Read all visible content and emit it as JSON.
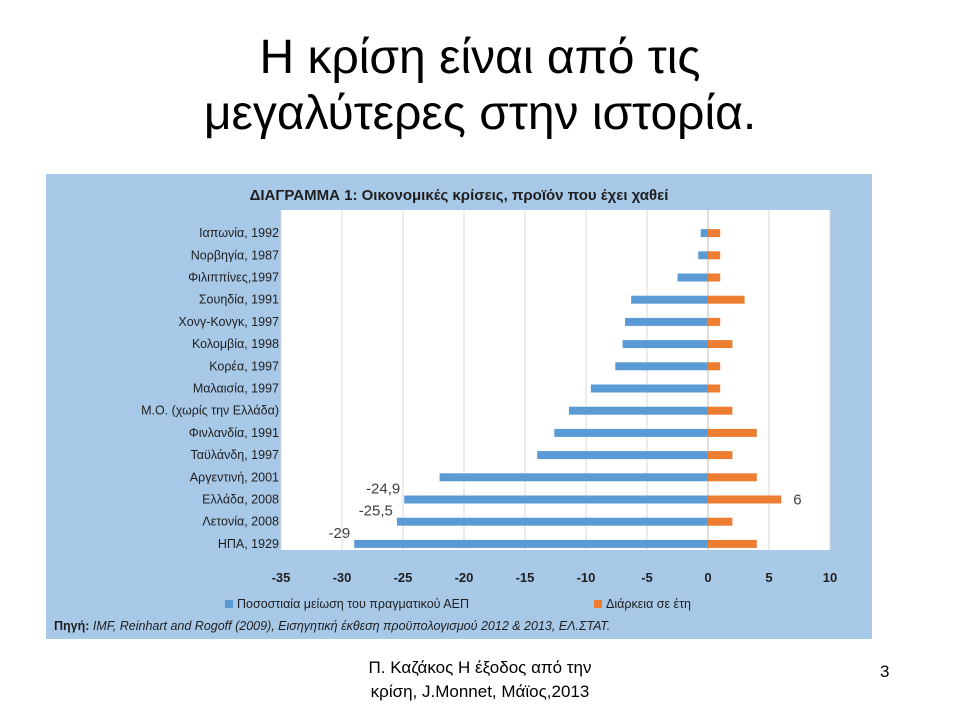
{
  "slide": {
    "title_line1": "Η κρίση είναι από τις",
    "title_line2": "μεγαλύτερες στην ιστορία.",
    "footer_line1": "Π. Καζάκος Η έξοδος από την",
    "footer_line2": "κρίση, J.Monnet, Μάϊος,2013",
    "page_number": "3"
  },
  "chart_data": {
    "type": "bar",
    "orientation": "horizontal",
    "title": "ΔΙΑΓΡΑΜΜΑ 1: Οικονομικές κρίσεις,  προϊόν που  έχει χαθεί",
    "categories": [
      "Ιαπωνία, 1992",
      "Νορβηγία, 1987",
      "Φιλιππίνες,1997",
      "Σουηδία, 1991",
      "Χονγ-Κονγκ, 1997",
      "Κολομβία, 1998",
      "Κορέα, 1997",
      "Μαλαισία, 1997",
      "Μ.Ο. (χωρίς την Ελλάδα)",
      "Φινλανδία, 1991",
      "Ταϋλάνδη, 1997",
      "Αργεντινή, 2001",
      "Ελλάδα, 2008",
      "Λετονία, 2008",
      "ΗΠΑ, 1929"
    ],
    "series": [
      {
        "name": "Ποσοστιαία μείωση του πραγματικού ΑΕΠ",
        "color": "#5b9bd5",
        "values": [
          -0.6,
          -0.8,
          -2.5,
          -6.3,
          -6.8,
          -7.0,
          -7.6,
          -9.6,
          -11.4,
          -12.6,
          -14.0,
          -22.0,
          -24.9,
          -25.5,
          -29.0
        ]
      },
      {
        "name": "Διάρκεια σε έτη",
        "color": "#ed7d31",
        "values": [
          1,
          1,
          1,
          3,
          1,
          2,
          1,
          1,
          2,
          4,
          2,
          4,
          6,
          2,
          4
        ]
      }
    ],
    "data_labels": [
      {
        "category": "Ελλάδα, 2008",
        "series": 0,
        "text": "-24,9"
      },
      {
        "category": "Λετονία, 2008",
        "series": 0,
        "text": "-25,5"
      },
      {
        "category": "ΗΠΑ, 1929",
        "series": 0,
        "text": "-29"
      },
      {
        "category": "Ελλάδα, 2008",
        "series": 1,
        "text": "6"
      }
    ],
    "x_ticks": [
      "-35",
      "-30",
      "-25",
      "-20",
      "-15",
      "-10",
      "-5",
      "0",
      "5",
      "10"
    ],
    "xlim": [
      -35,
      10
    ],
    "grid": true,
    "legend_position": "bottom",
    "source_prefix": "Πηγή:",
    "source_text": " IMF, Reinhart and Rogoff (2009), Εισηγητική έκθεση προϋπολογισμού 2012 & 2013, ΕΛ.ΣΤΑΤ."
  }
}
